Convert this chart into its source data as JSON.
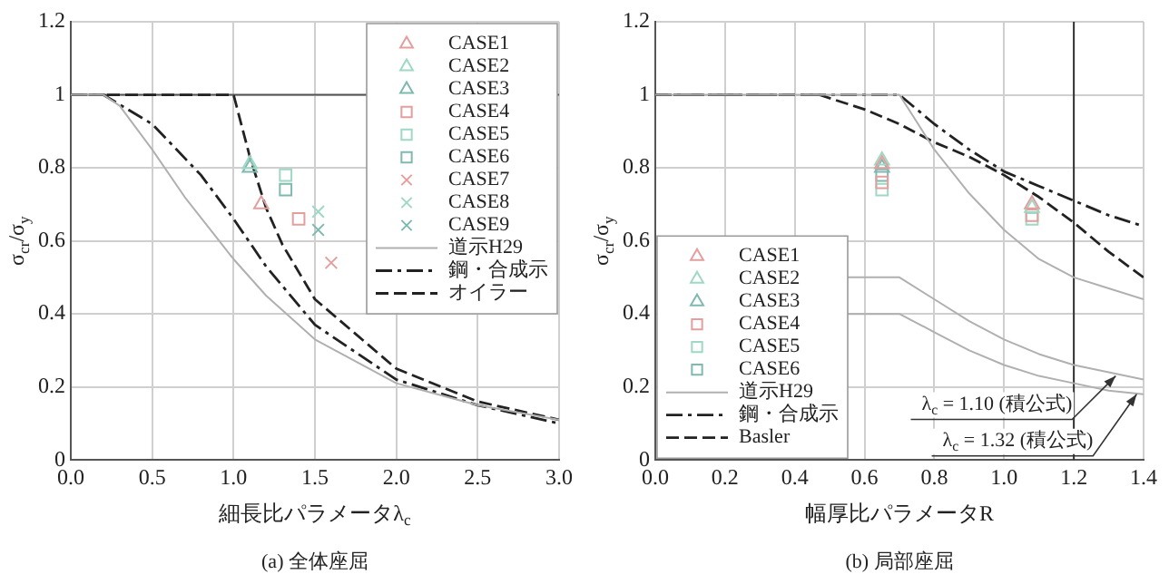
{
  "chart_data": [
    {
      "type": "line",
      "title": "(a) 全体座屈",
      "xlabel": "細長比パラメータλ$_{c}$",
      "ylabel": "σ$_{cr}$/σ$_{y}$",
      "xlim": [
        0,
        3
      ],
      "xticks": [
        {
          "value": 0,
          "label": "0.0"
        },
        {
          "value": 0.5,
          "label": "0.5"
        },
        {
          "value": 1,
          "label": "1.0"
        },
        {
          "value": 1.5,
          "label": "1.5"
        },
        {
          "value": 2,
          "label": "2.0"
        },
        {
          "value": 2.5,
          "label": "2.5"
        },
        {
          "value": 3,
          "label": "3.0"
        }
      ],
      "ylim": [
        0,
        1.2
      ],
      "yticks": [
        0,
        0.2,
        0.4,
        0.6,
        0.8,
        1,
        1.2
      ],
      "grid": true,
      "legend": "top right",
      "ref_lines": [
        {
          "axis": "y",
          "value": 1,
          "color": "#555555"
        }
      ],
      "series": [
        {
          "name": "CASE1",
          "type": "scatter",
          "marker": "triangle",
          "color": "#e39e9e",
          "x": [
            1.17
          ],
          "values": [
            0.7
          ]
        },
        {
          "name": "CASE2",
          "type": "scatter",
          "marker": "triangle",
          "color": "#9fd8c4",
          "x": [
            1.1
          ],
          "values": [
            0.81
          ]
        },
        {
          "name": "CASE3",
          "type": "scatter",
          "marker": "triangle",
          "color": "#7fb9b0",
          "x": [
            1.1
          ],
          "values": [
            0.8
          ]
        },
        {
          "name": "CASE4",
          "type": "scatter",
          "marker": "square",
          "color": "#e39e9e",
          "x": [
            1.4
          ],
          "values": [
            0.66
          ]
        },
        {
          "name": "CASE5",
          "type": "scatter",
          "marker": "square",
          "color": "#9fd8c4",
          "x": [
            1.32
          ],
          "values": [
            0.78
          ]
        },
        {
          "name": "CASE6",
          "type": "scatter",
          "marker": "square",
          "color": "#7fb9b0",
          "x": [
            1.32
          ],
          "values": [
            0.74
          ]
        },
        {
          "name": "CASE7",
          "type": "scatter",
          "marker": "cross",
          "color": "#e39e9e",
          "x": [
            1.6
          ],
          "values": [
            0.54
          ]
        },
        {
          "name": "CASE8",
          "type": "scatter",
          "marker": "cross",
          "color": "#9fd8c4",
          "x": [
            1.52
          ],
          "values": [
            0.68
          ]
        },
        {
          "name": "CASE9",
          "type": "scatter",
          "marker": "cross",
          "color": "#7fb9b0",
          "x": [
            1.52
          ],
          "values": [
            0.63
          ]
        },
        {
          "name": "道示H29",
          "type": "line",
          "marker": "none",
          "line_style": "solid",
          "color": "#b0b0b0",
          "x": [
            0,
            0.2,
            0.3,
            0.5,
            0.7,
            1,
            1.2,
            1.5,
            2,
            2.5,
            3
          ],
          "values": [
            1,
            1,
            0.97,
            0.85,
            0.72,
            0.55,
            0.45,
            0.33,
            0.21,
            0.15,
            0.11
          ]
        },
        {
          "name": "鋼・合成示",
          "type": "line",
          "marker": "none",
          "line_style": "dashdot",
          "color": "#222222",
          "x": [
            0,
            0.2,
            0.5,
            0.8,
            1,
            1.2,
            1.5,
            2,
            2.5,
            3
          ],
          "values": [
            1,
            1,
            0.92,
            0.78,
            0.66,
            0.53,
            0.37,
            0.22,
            0.15,
            0.1
          ]
        },
        {
          "name": "オイラー",
          "type": "line",
          "marker": "none",
          "line_style": "dashed",
          "color": "#222222",
          "x": [
            0,
            1,
            1.1,
            1.2,
            1.3,
            1.5,
            2,
            2.5,
            3
          ],
          "values": [
            1,
            1,
            0.83,
            0.69,
            0.59,
            0.44,
            0.25,
            0.16,
            0.11
          ]
        }
      ]
    },
    {
      "type": "line",
      "title": "(b) 局部座屈",
      "xlabel": "幅厚比パラメータR",
      "ylabel": "σ$_{cr}$/σ$_{y}$",
      "xlim": [
        0,
        1.4
      ],
      "xticks": [
        {
          "value": 0,
          "label": "0.0"
        },
        {
          "value": 0.2,
          "label": "0.2"
        },
        {
          "value": 0.4,
          "label": "0.4"
        },
        {
          "value": 0.6,
          "label": "0.6"
        },
        {
          "value": 0.8,
          "label": "0.8"
        },
        {
          "value": 1,
          "label": "1.0"
        },
        {
          "value": 1.2,
          "label": "1.2"
        },
        {
          "value": 1.4,
          "label": "1.4"
        }
      ],
      "ylim": [
        0,
        1.2
      ],
      "yticks": [
        0,
        0.2,
        0.4,
        0.6,
        0.8,
        1,
        1.2
      ],
      "grid": true,
      "legend": "bottom left",
      "ref_lines": [
        {
          "axis": "x",
          "value": 1.2,
          "color": "#333333"
        }
      ],
      "annotations": [
        {
          "text": "λ$_{c}$ = 1.10 (積公式)",
          "x": 1.32,
          "y": 0.24
        },
        {
          "text": "λ$_{c}$ = 1.32 (積公式)",
          "x": 1.38,
          "y": 0.19
        }
      ],
      "series": [
        {
          "name": "CASE1",
          "type": "scatter",
          "marker": "triangle",
          "color": "#e39e9e",
          "x": [
            0.65,
            1.08
          ],
          "values": [
            0.81,
            0.7
          ]
        },
        {
          "name": "CASE2",
          "type": "scatter",
          "marker": "triangle",
          "color": "#9fd8c4",
          "x": [
            0.65,
            1.08
          ],
          "values": [
            0.82,
            0.69
          ]
        },
        {
          "name": "CASE3",
          "type": "scatter",
          "marker": "triangle",
          "color": "#7fb9b0",
          "x": [
            0.65
          ],
          "values": [
            0.8
          ]
        },
        {
          "name": "CASE4",
          "type": "scatter",
          "marker": "square",
          "color": "#e39e9e",
          "x": [
            0.65,
            1.08
          ],
          "values": [
            0.76,
            0.67
          ]
        },
        {
          "name": "CASE5",
          "type": "scatter",
          "marker": "square",
          "color": "#9fd8c4",
          "x": [
            0.65,
            1.08
          ],
          "values": [
            0.74,
            0.66
          ]
        },
        {
          "name": "CASE6",
          "type": "scatter",
          "marker": "square",
          "color": "#7fb9b0",
          "x": [
            0.65
          ],
          "values": [
            0.78
          ]
        },
        {
          "name": "道示H29",
          "type": "line",
          "marker": "none",
          "line_style": "solid",
          "color": "#b0b0b0",
          "x": [
            0,
            0.7,
            0.8,
            0.9,
            1,
            1.1,
            1.2,
            1.3,
            1.4
          ],
          "values": [
            1,
            1,
            0.85,
            0.73,
            0.63,
            0.55,
            0.5,
            0.47,
            0.44
          ]
        },
        {
          "type": "line",
          "marker": "none",
          "line_style": "solid",
          "color": "#b0b0b0",
          "x": [
            0.55,
            0.7,
            0.8,
            0.9,
            1,
            1.1,
            1.2,
            1.3,
            1.4
          ],
          "values": [
            0.5,
            0.5,
            0.44,
            0.38,
            0.33,
            0.29,
            0.26,
            0.24,
            0.22
          ]
        },
        {
          "type": "line",
          "marker": "none",
          "line_style": "solid",
          "color": "#b0b0b0",
          "x": [
            0.55,
            0.7,
            0.8,
            0.9,
            1,
            1.1,
            1.2,
            1.3,
            1.4
          ],
          "values": [
            0.4,
            0.4,
            0.35,
            0.3,
            0.26,
            0.23,
            0.21,
            0.19,
            0.18
          ]
        },
        {
          "name": "鋼・合成示",
          "type": "line",
          "marker": "none",
          "line_style": "dashdot",
          "color": "#222222",
          "x": [
            0,
            0.7,
            0.8,
            0.9,
            1,
            1.1,
            1.2,
            1.3,
            1.4
          ],
          "values": [
            1,
            1,
            0.92,
            0.85,
            0.79,
            0.75,
            0.71,
            0.67,
            0.64
          ]
        },
        {
          "name": "Basler",
          "type": "line",
          "marker": "none",
          "line_style": "dashed",
          "color": "#222222",
          "x": [
            0,
            0.47,
            0.6,
            0.7,
            0.8,
            0.9,
            1,
            1.1,
            1.2,
            1.3,
            1.4
          ],
          "values": [
            1,
            1,
            0.96,
            0.92,
            0.87,
            0.83,
            0.78,
            0.72,
            0.65,
            0.57,
            0.5
          ]
        }
      ]
    }
  ]
}
